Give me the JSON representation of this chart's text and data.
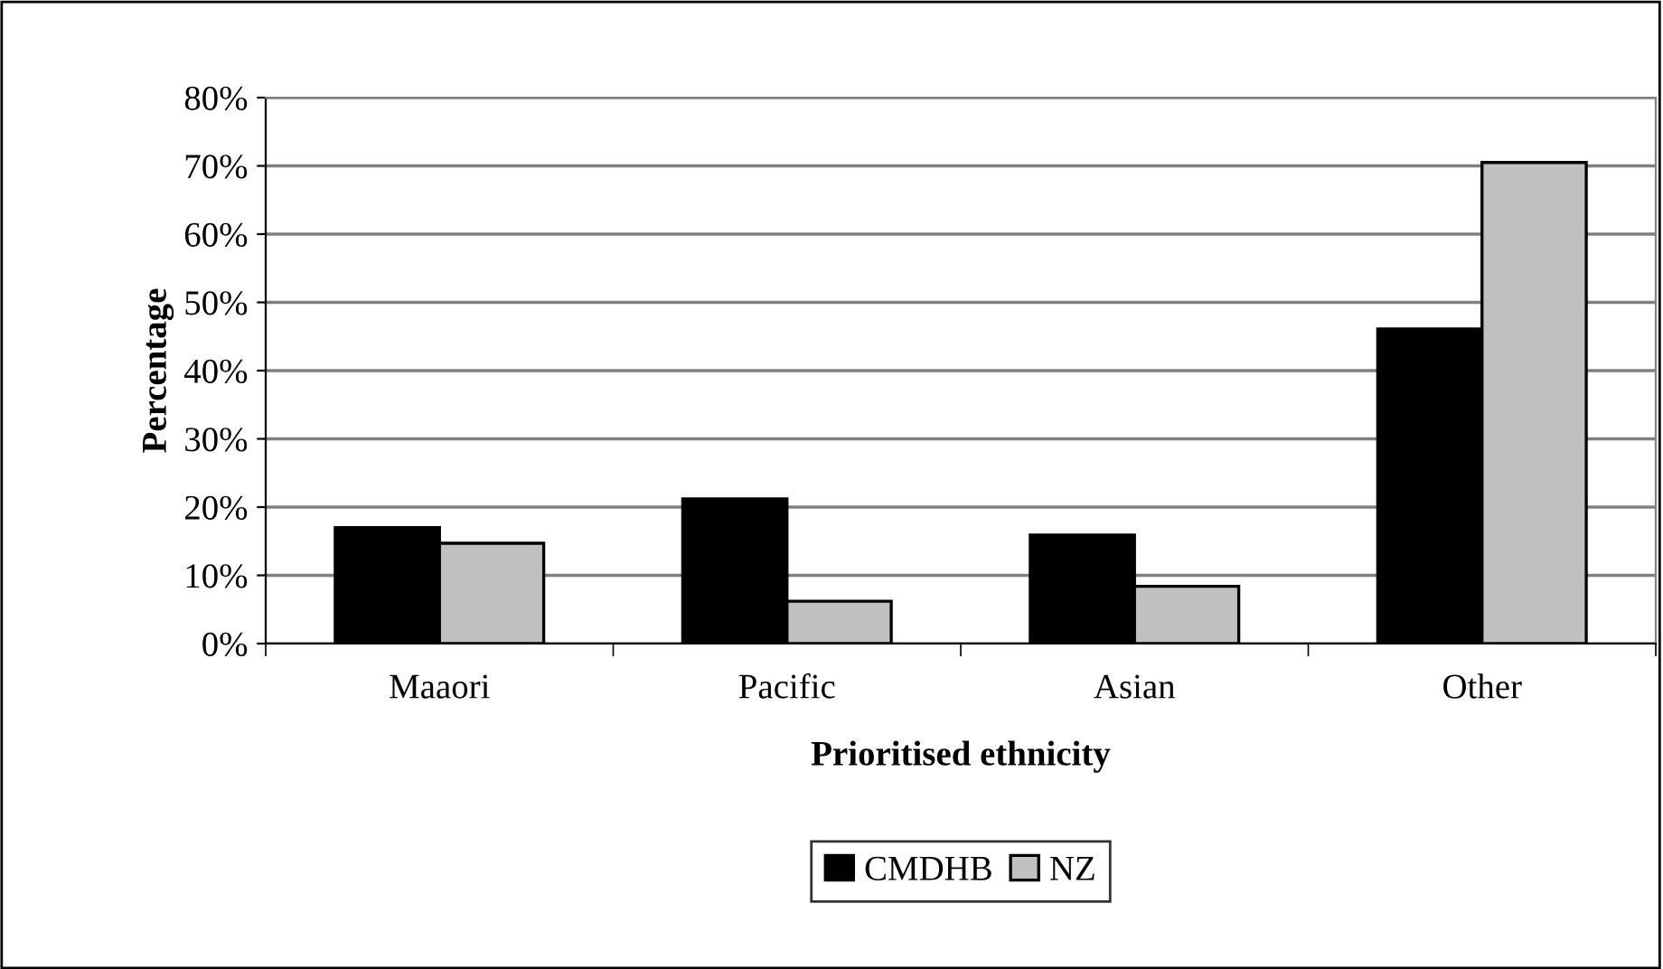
{
  "chart_data": {
    "type": "bar",
    "xlabel": "Prioritised ethnicity",
    "ylabel": "Percentage",
    "categories": [
      "Maaori",
      "Pacific",
      "Asian",
      "Other"
    ],
    "series": [
      {
        "name": "CMDHB",
        "color": "#000000",
        "values": [
          17,
          21.2,
          15.9,
          46.1
        ]
      },
      {
        "name": "NZ",
        "color": "#c0c0c0",
        "values": [
          14.7,
          6.2,
          8.4,
          70.5
        ]
      }
    ],
    "ylim": [
      0,
      80
    ],
    "yticks": [
      {
        "value": 0,
        "label": "0%"
      },
      {
        "value": 10,
        "label": "10%"
      },
      {
        "value": 20,
        "label": "20%"
      },
      {
        "value": 30,
        "label": "30%"
      },
      {
        "value": 40,
        "label": "40%"
      },
      {
        "value": 50,
        "label": "50%"
      },
      {
        "value": 60,
        "label": "60%"
      },
      {
        "value": 70,
        "label": "70%"
      },
      {
        "value": 80,
        "label": "80%"
      }
    ],
    "grid": "y",
    "legend": "bottom"
  }
}
